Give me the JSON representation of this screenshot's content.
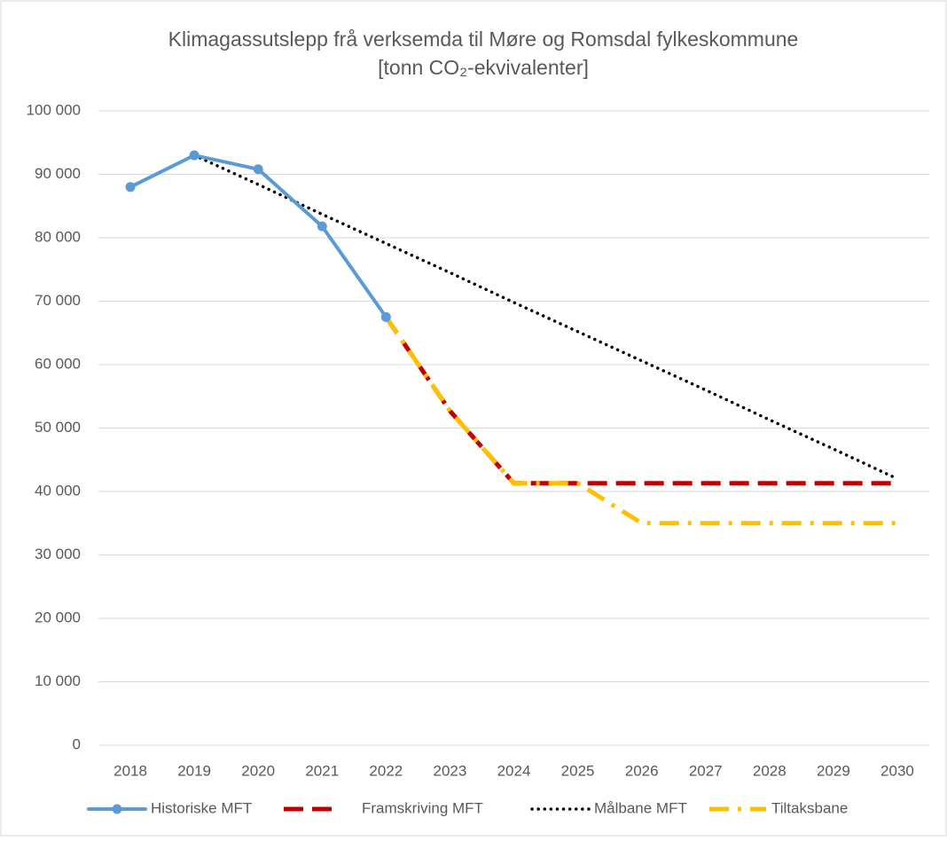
{
  "chart_data": {
    "type": "line",
    "title": [
      "Klimagassutslepp frå verksemda til Møre og Romsdal fylkeskommune",
      "[tonn CO₂-ekvivalenter]"
    ],
    "categories": [
      "2018",
      "2019",
      "2020",
      "2021",
      "2022",
      "2023",
      "2024",
      "2025",
      "2026",
      "2027",
      "2028",
      "2029",
      "2030"
    ],
    "series": [
      {
        "name": "Historiske MFT",
        "color": "#5b9bd5",
        "style": "solid-marker",
        "values": [
          88000,
          93000,
          90800,
          81800,
          67500,
          null,
          null,
          null,
          null,
          null,
          null,
          null,
          null
        ]
      },
      {
        "name": "Framskriving MFT",
        "color": "#c00000",
        "style": "dash",
        "values": [
          null,
          null,
          null,
          null,
          67500,
          52700,
          41300,
          41300,
          41300,
          41300,
          41300,
          41300,
          41300
        ]
      },
      {
        "name": "Målbane MFT",
        "color": "#000000",
        "style": "dot",
        "values": [
          null,
          93000,
          88400,
          83700,
          79100,
          74500,
          69800,
          65200,
          60600,
          56000,
          51300,
          46700,
          42000
        ]
      },
      {
        "name": "Tiltaksbane",
        "color": "#ffc000",
        "style": "dashdot",
        "values": [
          null,
          null,
          null,
          null,
          67500,
          52700,
          41300,
          41300,
          35000,
          35000,
          35000,
          35000,
          35000
        ]
      }
    ],
    "ylim": [
      0,
      100000
    ],
    "yticks": [
      0,
      {
        "value": 10000,
        "label": "10 000"
      },
      {
        "value": 20000,
        "label": "20 000"
      },
      {
        "value": 30000,
        "label": "30 000"
      },
      {
        "value": 40000,
        "label": "40 000"
      },
      {
        "value": 50000,
        "label": "50 000"
      },
      {
        "value": 60000,
        "label": "60 000"
      },
      {
        "value": 70000,
        "label": "70 000"
      },
      {
        "value": 80000,
        "label": "80 000"
      },
      {
        "value": 90000,
        "label": "90 000"
      },
      {
        "value": 100000,
        "label": "100 000"
      }
    ],
    "grid": true,
    "legend": "bottom"
  }
}
